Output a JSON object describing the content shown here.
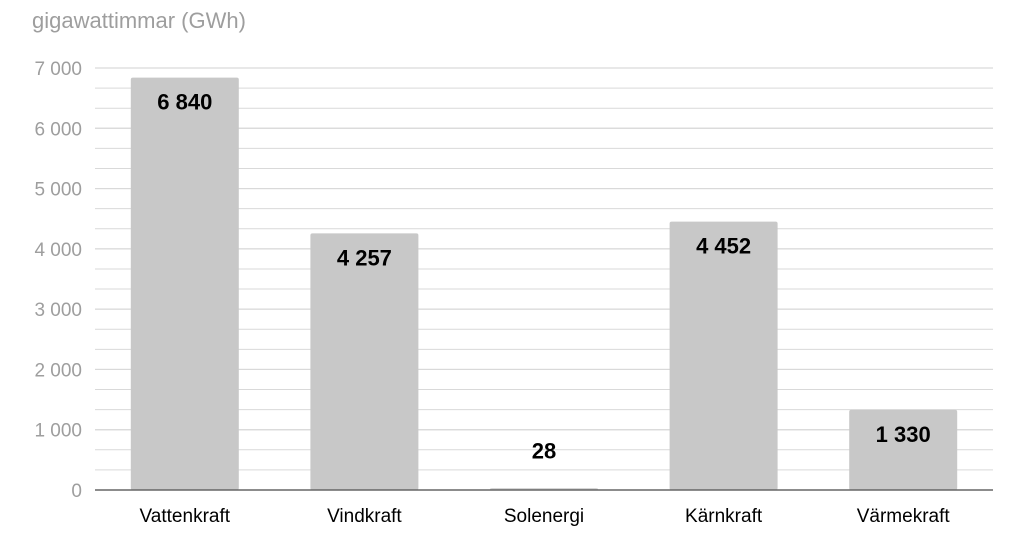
{
  "chart_data": {
    "type": "bar",
    "title": "",
    "unit_label": "gigawattimmar (GWh)",
    "xlabel": "",
    "ylabel": "",
    "categories": [
      "Vattenkraft",
      "Vindkraft",
      "Solenergi",
      "Kärnkraft",
      "Värmekraft"
    ],
    "values": [
      6840,
      4257,
      28,
      4452,
      1330
    ],
    "data_labels": [
      "6 840",
      "4 257",
      "28",
      "4 452",
      "1 330"
    ],
    "ylim": [
      0,
      7000
    ],
    "yticks": [
      0,
      1000,
      2000,
      3000,
      4000,
      5000,
      6000,
      7000
    ],
    "ytick_labels": [
      "0",
      "1 000",
      "2 000",
      "3 000",
      "4 000",
      "5 000",
      "6 000",
      "7 000"
    ],
    "grid": true,
    "minor_grid_step": 333.33,
    "legend": "none",
    "colors": {
      "bar": "#c8c8c8",
      "grid": "#d9d9d9",
      "axis": "#666666",
      "tick_label": "#9e9e9e",
      "category_label": "#000000",
      "data_label": "#000000"
    }
  }
}
